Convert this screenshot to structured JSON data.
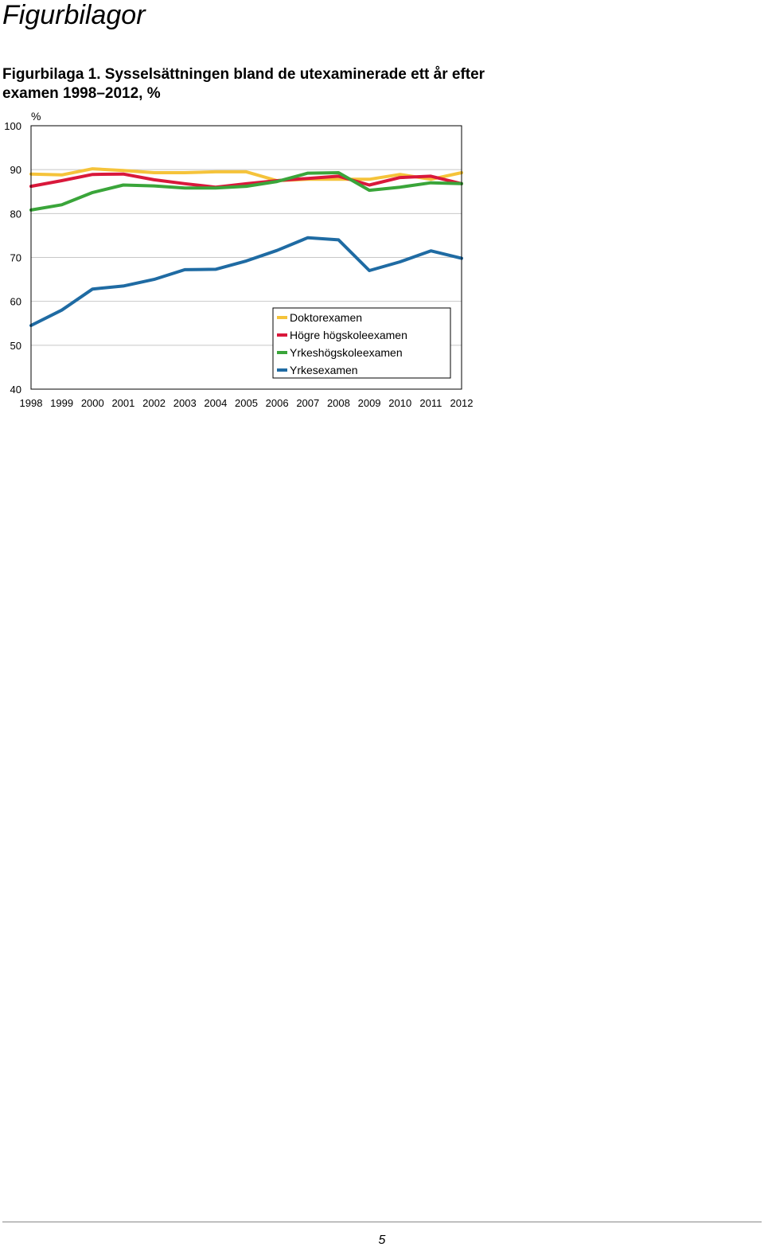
{
  "document": {
    "heading": "Figurbilagor",
    "caption_line1": "Figurbilaga 1. Sysselsättningen bland de utexaminerade ett år efter",
    "caption_line2": "examen 1998–2012, %",
    "page_number": "5"
  },
  "chart_data": {
    "type": "line",
    "ylabel": "%",
    "ylim": [
      40,
      100
    ],
    "yticks": [
      40,
      50,
      60,
      70,
      80,
      90,
      100
    ],
    "grid": true,
    "legend_position": "lower-right",
    "categories": [
      "1998",
      "1999",
      "2000",
      "2001",
      "2002",
      "2003",
      "2004",
      "2005",
      "2006",
      "2007",
      "2008",
      "2009",
      "2010",
      "2011",
      "2012"
    ],
    "series": [
      {
        "name": "Doktorexamen",
        "color": "#f5c33a",
        "values": [
          89,
          88.8,
          90.2,
          89.8,
          89.3,
          89.3,
          89.5,
          89.5,
          87.5,
          87.8,
          87.8,
          87.8,
          88.9,
          87.8,
          89.3
        ]
      },
      {
        "name": "Högre högskoleexamen",
        "color": "#d9183b",
        "values": [
          86.2,
          87.5,
          88.9,
          89,
          87.7,
          86.8,
          86,
          86.8,
          87.5,
          88,
          88.5,
          86.5,
          88.2,
          88.5,
          86.8
        ]
      },
      {
        "name": "Yrkeshögskoleexamen",
        "color": "#3aa53a",
        "values": [
          80.8,
          82,
          84.8,
          86.5,
          86.3,
          85.8,
          85.8,
          86.2,
          87.3,
          89.2,
          89.3,
          85.3,
          86,
          87,
          86.8
        ]
      },
      {
        "name": "Yrkesexamen",
        "color": "#1f6ba3",
        "values": [
          54.5,
          58,
          62.8,
          63.5,
          65,
          67.2,
          67.3,
          69.2,
          71.6,
          74.5,
          74,
          67,
          69,
          71.5,
          69.8
        ]
      }
    ]
  }
}
